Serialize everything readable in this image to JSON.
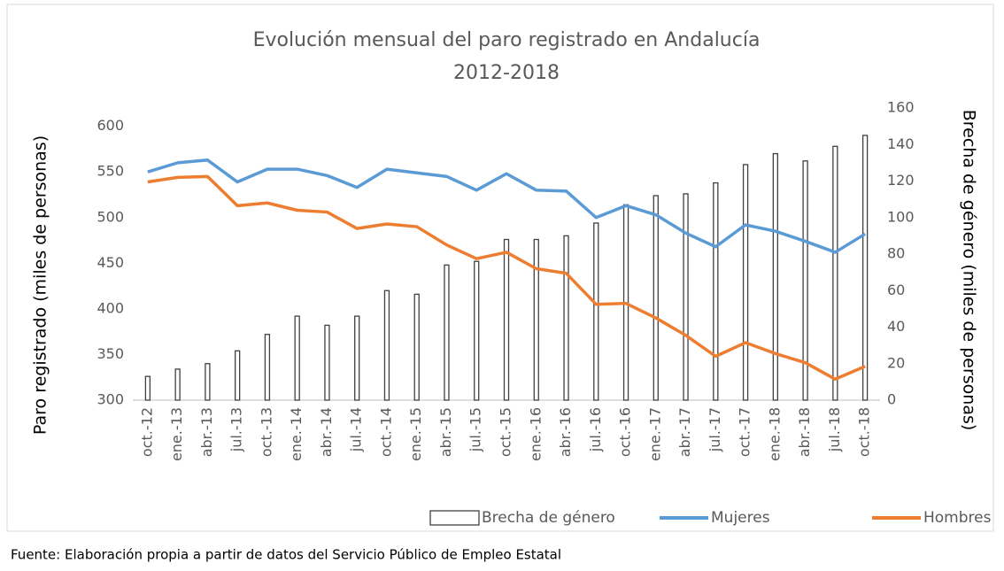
{
  "chart_data": {
    "type": "line",
    "title": "Evolución mensual del paro registrado en Andalucía",
    "subtitle": "2012-2018",
    "ylabel": "Paro registrado (miles de personas)",
    "y2label": "Brecha de género (miles de personas)",
    "source": "Fuente: Elaboración propia a partir de datos del Servicio Público de Empleo Estatal",
    "categories": [
      "oct.-12",
      "ene.-13",
      "abr.-13",
      "jul.-13",
      "oct.-13",
      "ene.-14",
      "abr.-14",
      "jul.-14",
      "oct.-14",
      "ene.-15",
      "abr.-15",
      "jul.-15",
      "oct.-15",
      "ene.-16",
      "abr.-16",
      "jul.-16",
      "oct.-16",
      "ene.-17",
      "abr.-17",
      "jul.-17",
      "oct.-17",
      "ene.-18",
      "abr.-18",
      "jul.-18",
      "oct.-18"
    ],
    "ylim": [
      300,
      620
    ],
    "yticks": [
      300,
      350,
      400,
      450,
      500,
      550,
      600
    ],
    "y2lim": [
      0,
      160
    ],
    "y2ticks": [
      0,
      20,
      40,
      60,
      80,
      100,
      120,
      140,
      160
    ],
    "grid": false,
    "legend": "bottom",
    "series": [
      {
        "name": "Brecha de género",
        "type": "bar",
        "axis": "y2",
        "color": "#404040",
        "values": [
          13,
          17,
          20,
          27,
          36,
          46,
          41,
          46,
          60,
          58,
          74,
          76,
          88,
          88,
          90,
          97,
          107,
          112,
          113,
          119,
          129,
          135,
          131,
          139,
          145
        ]
      },
      {
        "name": "Mujeres",
        "type": "line",
        "color": "#5B9BD5",
        "values": [
          550,
          560,
          563,
          539,
          553,
          553,
          546,
          533,
          553,
          549,
          545,
          530,
          548,
          530,
          529,
          500,
          513,
          503,
          483,
          468,
          492,
          485,
          474,
          462,
          482
        ]
      },
      {
        "name": "Hombres",
        "type": "line",
        "color": "#ED7D31",
        "values": [
          539,
          544,
          545,
          513,
          516,
          508,
          506,
          488,
          493,
          490,
          470,
          455,
          462,
          444,
          439,
          405,
          406,
          390,
          371,
          348,
          363,
          351,
          341,
          323,
          337
        ]
      }
    ]
  }
}
